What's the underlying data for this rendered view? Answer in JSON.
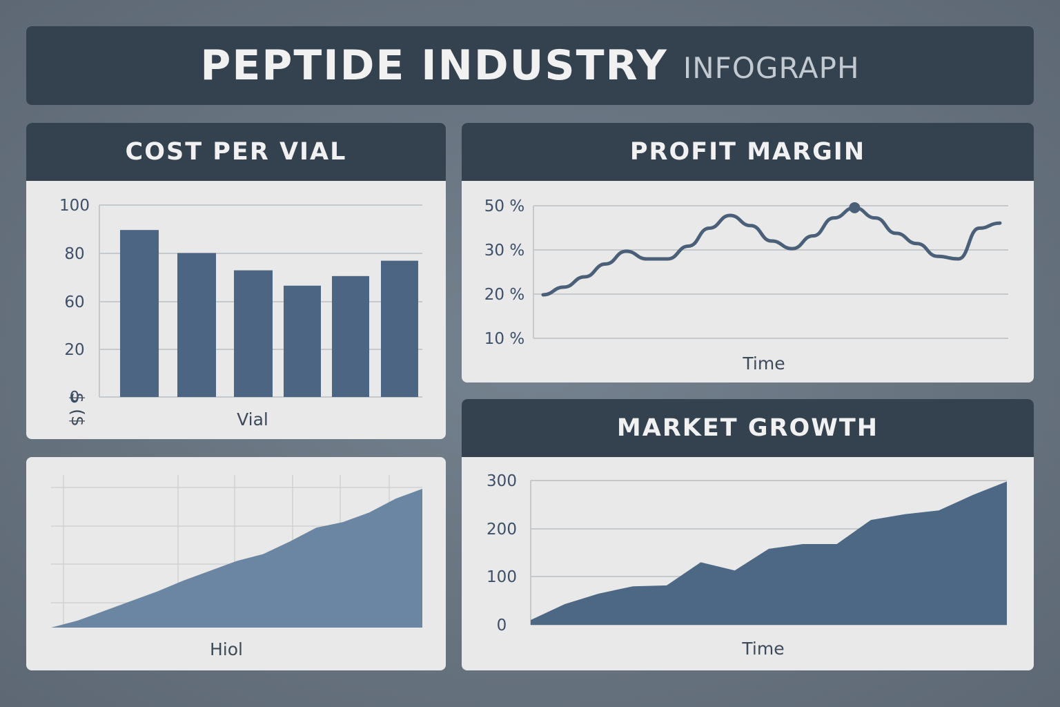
{
  "header": {
    "title": "PEPTIDE INDUSTRY",
    "subtitle": "INFOGRAPH"
  },
  "colors": {
    "panel_header": "#34414e",
    "bar": "#4b6582",
    "area_light": "#6a86a3",
    "area_dark": "#4d6885",
    "line": "#4a5f78"
  },
  "chart_data": [
    {
      "type": "bar",
      "title": "COST PER VIAL",
      "xlabel": "Vial",
      "ylabel": "$ ($",
      "yticks": [
        "100",
        "80",
        "60",
        "20",
        "0"
      ],
      "values": [
        87,
        75,
        66,
        58,
        63,
        71
      ]
    },
    {
      "type": "line",
      "title": "PROFIT MARGIN",
      "xlabel": "Time",
      "yticks": [
        "50 %",
        "30 %",
        "20 %",
        "10 %"
      ],
      "values": [
        17,
        20,
        24,
        29,
        34,
        31,
        31,
        36,
        43,
        48,
        44,
        38,
        35,
        40,
        47,
        51,
        47,
        41,
        37,
        32,
        31,
        43,
        45
      ],
      "highlight_index": 15
    },
    {
      "type": "area",
      "title": "",
      "xlabel": "Hiol",
      "values": [
        0,
        5,
        12,
        19,
        26,
        34,
        41,
        48,
        53,
        62,
        72,
        76,
        83,
        93,
        100
      ]
    },
    {
      "type": "area",
      "title": "MARKET GROWTH",
      "xlabel": "Time",
      "yticks": [
        "300",
        "200",
        "100",
        "0"
      ],
      "values": [
        10,
        43,
        65,
        80,
        82,
        130,
        113,
        158,
        168,
        168,
        218,
        230,
        238,
        270,
        298
      ]
    }
  ]
}
